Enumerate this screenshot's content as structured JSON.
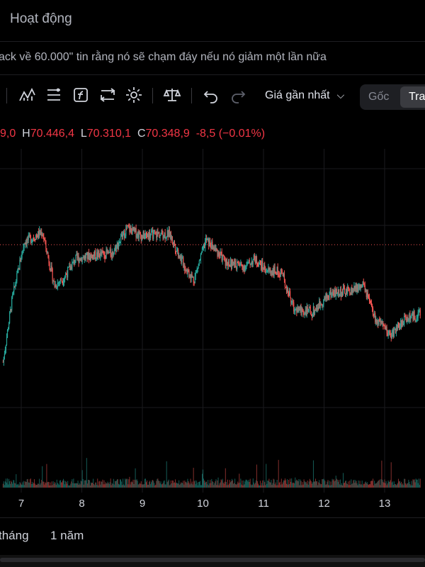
{
  "header": {
    "title": "Hoạt động"
  },
  "subtitle": {
    "text": "ack về 60.000\" tin rằng nó sẽ chạm đáy nếu nó giảm một lần nữa"
  },
  "toolbar": {
    "icons": [
      "indicators-icon",
      "compare-icon",
      "function-icon",
      "replay-icon",
      "settings-icon",
      "scale-icon",
      "undo-icon",
      "redo-icon"
    ],
    "price_type": "Giá gần nhất",
    "toggle": {
      "option1": "Gốc",
      "option2": "Tra"
    }
  },
  "ohlc": {
    "open_partial": "9,0",
    "h_label": "H",
    "h_value": "70.446,4",
    "l_label": "L",
    "l_value": "70.310,1",
    "c_label": "C",
    "c_value": "70.348,9",
    "change": "-8,5 (−0.01%)"
  },
  "colors": {
    "up": "#26a69a",
    "down": "#ef5350",
    "background": "#000000",
    "grid": "#1a1a1e"
  },
  "chart_data": {
    "type": "candlestick",
    "x_ticks": [
      "7",
      "8",
      "9",
      "10",
      "11",
      "12",
      "13"
    ],
    "price_line": 70348.9,
    "ylim": [
      62000,
      75000
    ],
    "series": [
      {
        "x": 6.7,
        "close": 64200
      },
      {
        "x": 6.85,
        "close": 67500
      },
      {
        "x": 7.05,
        "close": 70500
      },
      {
        "x": 7.35,
        "close": 71000
      },
      {
        "x": 7.55,
        "close": 68200
      },
      {
        "x": 7.7,
        "close": 68600
      },
      {
        "x": 7.9,
        "close": 69600
      },
      {
        "x": 8.2,
        "close": 69800
      },
      {
        "x": 8.5,
        "close": 69900
      },
      {
        "x": 8.75,
        "close": 71200
      },
      {
        "x": 9.0,
        "close": 70800
      },
      {
        "x": 9.2,
        "close": 70900
      },
      {
        "x": 9.45,
        "close": 70900
      },
      {
        "x": 9.7,
        "close": 69200
      },
      {
        "x": 9.85,
        "close": 68500
      },
      {
        "x": 10.05,
        "close": 70600
      },
      {
        "x": 10.4,
        "close": 69400
      },
      {
        "x": 10.7,
        "close": 69200
      },
      {
        "x": 10.85,
        "close": 69600
      },
      {
        "x": 11.05,
        "close": 69000
      },
      {
        "x": 11.3,
        "close": 68900
      },
      {
        "x": 11.5,
        "close": 67000
      },
      {
        "x": 11.8,
        "close": 66800
      },
      {
        "x": 12.1,
        "close": 67800
      },
      {
        "x": 12.4,
        "close": 67900
      },
      {
        "x": 12.65,
        "close": 68200
      },
      {
        "x": 12.85,
        "close": 66400
      },
      {
        "x": 13.1,
        "close": 65600
      },
      {
        "x": 13.35,
        "close": 66500
      },
      {
        "x": 13.6,
        "close": 66700
      }
    ]
  },
  "time_ranges": [
    "tháng",
    "1 năm"
  ]
}
